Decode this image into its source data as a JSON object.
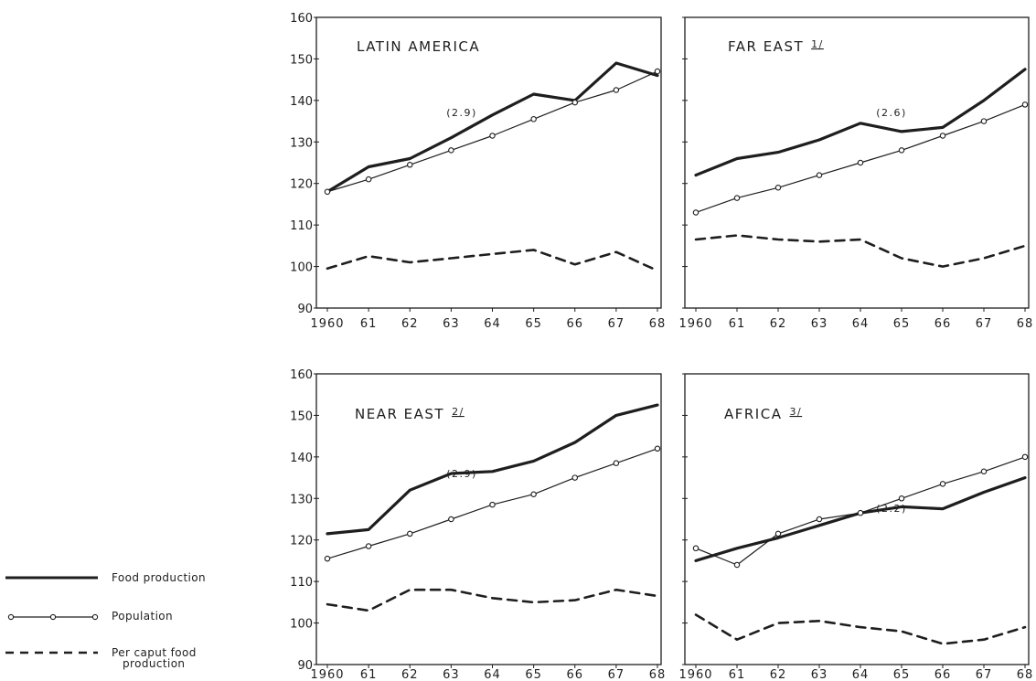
{
  "legend": {
    "food_production": "Food production",
    "population": "Population",
    "per_caput_line1": "Per caput food",
    "per_caput_line2": "production"
  },
  "chart_data": [
    {
      "type": "line",
      "title": "LATIN AMERICA",
      "growth_label": "(2.9)",
      "categories": [
        "1960",
        "61",
        "62",
        "63",
        "64",
        "65",
        "66",
        "67",
        "68"
      ],
      "ylim": [
        90,
        160
      ],
      "yticks": [
        "90",
        "100",
        "110",
        "120",
        "130",
        "140",
        "150",
        "160"
      ],
      "series": [
        {
          "name": "Food production",
          "values": [
            118,
            124,
            126,
            131,
            136.5,
            141.5,
            140,
            149,
            146
          ]
        },
        {
          "name": "Population",
          "values": [
            118,
            121,
            124.5,
            128,
            131.5,
            135.5,
            139.5,
            142.5,
            147
          ]
        },
        {
          "name": "Per caput food production",
          "values": [
            99.5,
            102.5,
            101,
            102,
            103,
            104,
            100.5,
            103.5,
            99
          ]
        }
      ]
    },
    {
      "type": "line",
      "title": "FAR EAST",
      "title_mark": "1/",
      "growth_label": "(2.6)",
      "categories": [
        "1960",
        "61",
        "62",
        "63",
        "64",
        "65",
        "66",
        "67",
        "68"
      ],
      "ylim": [
        90,
        160
      ],
      "yticks": [],
      "series": [
        {
          "name": "Food production",
          "values": [
            122,
            126,
            127.5,
            130.5,
            134.5,
            132.5,
            133.5,
            140,
            147.5
          ]
        },
        {
          "name": "Population",
          "values": [
            113,
            116.5,
            119,
            122,
            125,
            128,
            131.5,
            135,
            139
          ]
        },
        {
          "name": "Per caput food production",
          "values": [
            106.5,
            107.5,
            106.5,
            106,
            106.5,
            102,
            100,
            102,
            105
          ]
        }
      ]
    },
    {
      "type": "line",
      "title": "NEAR EAST",
      "title_mark": "2/",
      "growth_label": "(2.9)",
      "categories": [
        "1960",
        "61",
        "62",
        "63",
        "64",
        "65",
        "66",
        "67",
        "68"
      ],
      "ylim": [
        90,
        160
      ],
      "yticks": [
        "90",
        "100",
        "110",
        "120",
        "130",
        "140",
        "150",
        "160"
      ],
      "series": [
        {
          "name": "Food production",
          "values": [
            121.5,
            122.5,
            132,
            136,
            136.5,
            139,
            143.5,
            150,
            152.5
          ]
        },
        {
          "name": "Population",
          "values": [
            115.5,
            118.5,
            121.5,
            125,
            128.5,
            131,
            135,
            138.5,
            142
          ]
        },
        {
          "name": "Per caput food production",
          "values": [
            104.5,
            103,
            108,
            108,
            106,
            105,
            105.5,
            108,
            106.5
          ]
        }
      ]
    },
    {
      "type": "line",
      "title": "AFRICA",
      "title_mark": "3/",
      "growth_label": "(2.2)",
      "categories": [
        "1960",
        "61",
        "62",
        "63",
        "64",
        "65",
        "66",
        "67",
        "68"
      ],
      "ylim": [
        90,
        160
      ],
      "yticks": [],
      "series": [
        {
          "name": "Food production",
          "values": [
            115,
            118,
            120.5,
            123.5,
            126.5,
            128,
            127.5,
            131.5,
            135
          ]
        },
        {
          "name": "Population",
          "values": [
            118,
            114,
            121.5,
            125,
            126.5,
            130,
            133.5,
            136.5,
            140
          ]
        },
        {
          "name": "Per caput food production",
          "values": [
            102,
            96,
            100,
            100.5,
            99,
            98,
            95,
            96,
            99
          ]
        }
      ]
    }
  ]
}
